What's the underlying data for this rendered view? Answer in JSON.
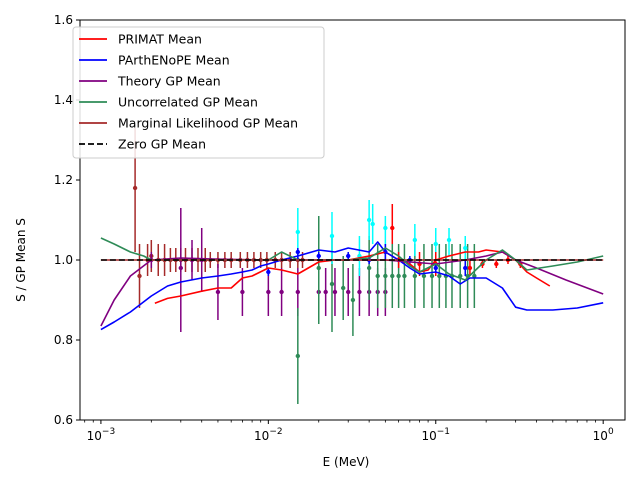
{
  "chart_data": {
    "type": "line",
    "title": "",
    "xlabel": "E (MeV)",
    "ylabel": "S / GP Mean S",
    "xscale": "log",
    "xlim": [
      0.00075,
      1.35
    ],
    "ylim": [
      0.6,
      1.6
    ],
    "xticks": [
      {
        "value": 0.001,
        "base": "10",
        "exp": "−3"
      },
      {
        "value": 0.01,
        "base": "10",
        "exp": "−2"
      },
      {
        "value": 0.1,
        "base": "10",
        "exp": "−1"
      },
      {
        "value": 1,
        "base": "10",
        "exp": "0"
      }
    ],
    "yticks": [
      {
        "value": 0.6,
        "label": "0.6"
      },
      {
        "value": 0.8,
        "label": "0.8"
      },
      {
        "value": 1.0,
        "label": "1.0"
      },
      {
        "value": 1.2,
        "label": "1.2"
      },
      {
        "value": 1.4,
        "label": "1.4"
      },
      {
        "value": 1.6,
        "label": "1.6"
      }
    ],
    "grid": false,
    "legend_position": "top-left",
    "series": [
      {
        "name": "PRIMAT Mean",
        "color": "#ff0000",
        "style": "solid",
        "x": [
          0.0021,
          0.0025,
          0.003,
          0.004,
          0.005,
          0.006,
          0.007,
          0.008,
          0.01,
          0.012,
          0.015,
          0.02,
          0.025,
          0.03,
          0.04,
          0.05,
          0.06,
          0.07,
          0.08,
          0.09,
          0.1,
          0.12,
          0.15,
          0.18,
          0.2,
          0.25,
          0.3,
          0.35,
          0.4,
          0.48
        ],
        "y": [
          0.892,
          0.904,
          0.91,
          0.922,
          0.93,
          0.93,
          0.955,
          0.96,
          0.98,
          0.975,
          0.965,
          0.995,
          1.0,
          1.0,
          1.01,
          1.02,
          1.0,
          0.99,
          0.97,
          0.975,
          1.0,
          1.01,
          1.02,
          1.02,
          1.025,
          1.02,
          1.0,
          0.97,
          0.955,
          0.935
        ]
      },
      {
        "name": "PArthENoPE Mean",
        "color": "#0000ff",
        "style": "solid",
        "x": [
          0.001,
          0.0012,
          0.0015,
          0.002,
          0.0025,
          0.003,
          0.004,
          0.005,
          0.006,
          0.007,
          0.008,
          0.009,
          0.01,
          0.012,
          0.015,
          0.02,
          0.025,
          0.03,
          0.04,
          0.045,
          0.05,
          0.06,
          0.07,
          0.08,
          0.1,
          0.12,
          0.14,
          0.16,
          0.2,
          0.25,
          0.3,
          0.35,
          0.5,
          0.7,
          1.0
        ],
        "y": [
          0.826,
          0.845,
          0.87,
          0.91,
          0.935,
          0.945,
          0.955,
          0.96,
          0.965,
          0.97,
          0.975,
          0.985,
          0.99,
          1.0,
          1.01,
          1.025,
          1.02,
          1.03,
          1.02,
          1.045,
          1.02,
          1.0,
          0.98,
          0.965,
          0.97,
          0.96,
          0.94,
          0.955,
          0.955,
          0.93,
          0.882,
          0.875,
          0.875,
          0.88,
          0.893
        ]
      },
      {
        "name": "Theory GP Mean",
        "color": "#800080",
        "style": "solid",
        "x": [
          0.001,
          0.0012,
          0.0015,
          0.002,
          0.003,
          0.005,
          0.01,
          0.02,
          0.05,
          0.1,
          0.15,
          0.2,
          0.25,
          0.3,
          0.4,
          0.6,
          1.0
        ],
        "y": [
          0.835,
          0.9,
          0.96,
          1.0,
          1.005,
          1.002,
          1.0,
          1.0,
          1.0,
          0.99,
          1.0,
          1.01,
          1.02,
          1.0,
          0.98,
          0.95,
          0.915
        ]
      },
      {
        "name": "Uncorrelated GP Mean",
        "color": "#2e8b57",
        "style": "solid",
        "x": [
          0.001,
          0.0012,
          0.0015,
          0.0018,
          0.002,
          0.003,
          0.005,
          0.01,
          0.012,
          0.015,
          0.02,
          0.03,
          0.04,
          0.05,
          0.06,
          0.07,
          0.08,
          0.1,
          0.12,
          0.15,
          0.2,
          0.25,
          0.3,
          0.35,
          0.5,
          0.7,
          1.0
        ],
        "y": [
          1.055,
          1.04,
          1.02,
          1.01,
          1.0,
          1.0,
          1.0,
          1.0,
          1.02,
          1.0,
          1.0,
          1.0,
          1.005,
          1.03,
          1.01,
          0.985,
          0.97,
          0.99,
          0.965,
          0.95,
          1.0,
          1.025,
          1.0,
          0.975,
          0.985,
          0.995,
          1.01
        ]
      },
      {
        "name": "Marginal Likelihood GP Mean",
        "color": "#a52a2a",
        "style": "solid",
        "x": [
          0.001,
          0.01,
          0.1,
          1.0
        ],
        "y": [
          1.0,
          1.0,
          1.0,
          1.0
        ]
      },
      {
        "name": "Zero GP Mean",
        "color": "#000000",
        "style": "dashed",
        "x": [
          0.001,
          0.01,
          0.1,
          1.0
        ],
        "y": [
          1.0,
          1.0,
          1.0,
          1.0
        ]
      }
    ],
    "points": [
      {
        "color": "#a52a2a",
        "data": [
          [
            0.0016,
            1.18,
            1.02,
            1.33
          ],
          [
            0.0017,
            0.96,
            0.88,
            1.04
          ],
          [
            0.0019,
            1.0,
            0.96,
            1.04
          ],
          [
            0.002,
            1.01,
            0.97,
            1.05
          ],
          [
            0.0022,
            1.0,
            0.96,
            1.04
          ],
          [
            0.0024,
            1.0,
            0.96,
            1.04
          ],
          [
            0.0026,
            1.0,
            0.97,
            1.03
          ],
          [
            0.0028,
            1.0,
            0.97,
            1.03
          ],
          [
            0.003,
            1.0,
            0.97,
            1.03
          ],
          [
            0.0032,
            1.0,
            0.97,
            1.03
          ],
          [
            0.0035,
            1.0,
            0.97,
            1.03
          ],
          [
            0.0038,
            1.0,
            0.97,
            1.03
          ],
          [
            0.0042,
            1.0,
            0.97,
            1.03
          ],
          [
            0.0045,
            1.0,
            0.98,
            1.02
          ],
          [
            0.005,
            1.0,
            0.98,
            1.02
          ],
          [
            0.0055,
            1.0,
            0.98,
            1.02
          ],
          [
            0.006,
            1.0,
            0.98,
            1.02
          ],
          [
            0.0068,
            1.0,
            0.98,
            1.02
          ],
          [
            0.0075,
            1.0,
            0.98,
            1.02
          ],
          [
            0.0082,
            1.0,
            0.98,
            1.02
          ],
          [
            0.009,
            1.0,
            0.98,
            1.02
          ],
          [
            0.0098,
            1.0,
            0.98,
            1.02
          ],
          [
            0.011,
            1.0,
            0.98,
            1.02
          ],
          [
            0.012,
            1.0,
            0.98,
            1.02
          ],
          [
            0.0135,
            1.0,
            0.98,
            1.02
          ],
          [
            0.015,
            1.0,
            0.98,
            1.02
          ],
          [
            0.016,
            1.0,
            0.98,
            1.02
          ]
        ]
      },
      {
        "color": "#800080",
        "data": [
          [
            0.002,
            1.0,
            0.98,
            1.02
          ],
          [
            0.003,
            0.98,
            0.82,
            1.13
          ],
          [
            0.0035,
            1.0,
            0.95,
            1.05
          ],
          [
            0.004,
            1.0,
            0.92,
            1.08
          ],
          [
            0.005,
            0.92,
            0.85,
            0.99
          ],
          [
            0.007,
            0.92,
            0.86,
            0.98
          ],
          [
            0.01,
            0.92,
            0.86,
            0.98
          ],
          [
            0.012,
            0.92,
            0.86,
            0.98
          ],
          [
            0.015,
            0.92,
            0.86,
            0.98
          ],
          [
            0.02,
            0.92,
            0.86,
            0.98
          ],
          [
            0.022,
            0.92,
            0.86,
            0.98
          ],
          [
            0.025,
            0.92,
            0.86,
            0.98
          ],
          [
            0.03,
            0.92,
            0.86,
            0.98
          ],
          [
            0.035,
            0.92,
            0.86,
            0.98
          ],
          [
            0.04,
            0.92,
            0.86,
            0.98
          ],
          [
            0.045,
            0.92,
            0.86,
            0.98
          ],
          [
            0.05,
            0.92,
            0.86,
            0.98
          ]
        ]
      },
      {
        "color": "#2e8b57",
        "data": [
          [
            0.015,
            0.76,
            0.64,
            0.88
          ],
          [
            0.02,
            0.98,
            0.84,
            1.11
          ],
          [
            0.024,
            0.94,
            0.82,
            1.06
          ],
          [
            0.028,
            0.93,
            0.85,
            1.01
          ],
          [
            0.032,
            0.9,
            0.81,
            0.99
          ],
          [
            0.04,
            0.98,
            0.9,
            1.06
          ],
          [
            0.045,
            0.96,
            0.88,
            1.04
          ],
          [
            0.05,
            0.96,
            0.88,
            1.04
          ],
          [
            0.055,
            0.96,
            0.88,
            1.04
          ],
          [
            0.06,
            0.96,
            0.88,
            1.04
          ],
          [
            0.065,
            0.96,
            0.88,
            1.04
          ],
          [
            0.075,
            0.96,
            0.88,
            1.04
          ],
          [
            0.085,
            0.96,
            0.88,
            1.04
          ],
          [
            0.095,
            0.96,
            0.88,
            1.04
          ],
          [
            0.105,
            0.96,
            0.88,
            1.04
          ],
          [
            0.115,
            0.96,
            0.88,
            1.04
          ],
          [
            0.125,
            0.96,
            0.88,
            1.04
          ],
          [
            0.14,
            0.96,
            0.88,
            1.04
          ],
          [
            0.155,
            0.96,
            0.88,
            1.04
          ],
          [
            0.17,
            0.96,
            0.88,
            1.04
          ]
        ]
      },
      {
        "color": "#00ffff",
        "data": [
          [
            0.015,
            1.07,
            1.0,
            1.13
          ],
          [
            0.024,
            1.06,
            0.99,
            1.12
          ],
          [
            0.035,
            1.01,
            0.96,
            1.06
          ],
          [
            0.04,
            1.1,
            1.05,
            1.15
          ],
          [
            0.042,
            1.09,
            1.04,
            1.14
          ],
          [
            0.05,
            1.08,
            1.04,
            1.11
          ],
          [
            0.075,
            1.05,
            1.01,
            1.09
          ],
          [
            0.1,
            1.04,
            1.0,
            1.08
          ],
          [
            0.12,
            1.05,
            1.01,
            1.08
          ],
          [
            0.15,
            1.03,
            1.0,
            1.06
          ]
        ]
      },
      {
        "color": "#ff0000",
        "data": [
          [
            0.055,
            1.08,
            1.04,
            1.14
          ],
          [
            0.06,
            1.0,
            0.98,
            1.02
          ],
          [
            0.08,
            0.99,
            0.96,
            1.02
          ],
          [
            0.1,
            0.99,
            0.96,
            1.02
          ],
          [
            0.16,
            0.98,
            0.96,
            1.0
          ],
          [
            0.19,
            0.99,
            0.98,
            1.0
          ],
          [
            0.23,
            0.99,
            0.98,
            1.0
          ],
          [
            0.27,
            1.0,
            0.99,
            1.01
          ],
          [
            0.32,
            0.99,
            0.98,
            1.0
          ]
        ]
      },
      {
        "color": "#0000ff",
        "data": [
          [
            0.01,
            0.97,
            0.96,
            0.98
          ],
          [
            0.015,
            1.02,
            1.0,
            1.03
          ],
          [
            0.02,
            1.01,
            1.0,
            1.02
          ],
          [
            0.03,
            1.01,
            1.0,
            1.02
          ],
          [
            0.04,
            1.0,
            0.99,
            1.01
          ],
          [
            0.05,
            1.02,
            1.0,
            1.04
          ],
          [
            0.07,
            1.0,
            0.99,
            1.01
          ],
          [
            0.1,
            0.98,
            0.97,
            0.99
          ],
          [
            0.15,
            0.98,
            0.96,
            1.0
          ]
        ]
      }
    ]
  }
}
